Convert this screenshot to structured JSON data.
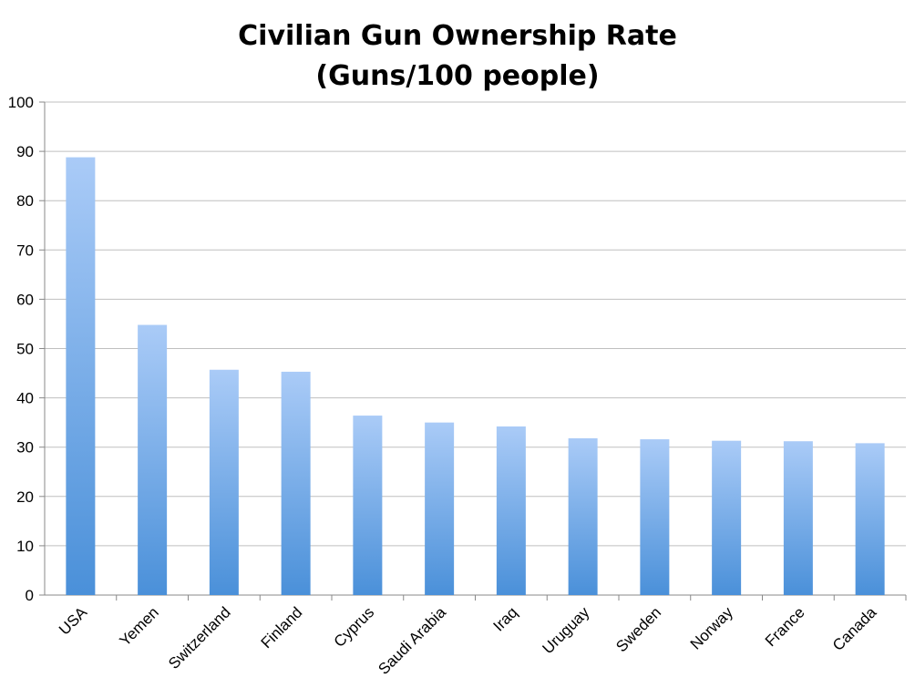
{
  "chart_data": {
    "type": "bar",
    "title": "Civilian Gun Ownership Rate",
    "subtitle": "(Guns/100 people)",
    "xlabel": "",
    "ylabel": "",
    "ylim": [
      0,
      100
    ],
    "yticks": [
      0,
      10,
      20,
      30,
      40,
      50,
      60,
      70,
      80,
      90,
      100
    ],
    "grid": true,
    "legend": "none",
    "categories": [
      "USA",
      "Yemen",
      "Switzerland",
      "Finland",
      "Cyprus",
      "Saudi Arabia",
      "Iraq",
      "Uruguay",
      "Sweden",
      "Norway",
      "France",
      "Canada"
    ],
    "values": [
      88.8,
      54.8,
      45.7,
      45.3,
      36.4,
      35.0,
      34.2,
      31.8,
      31.6,
      31.3,
      31.2,
      30.8
    ],
    "colors": {
      "bar_top": "#aacbf7",
      "bar_bottom": "#4a90d9",
      "grid": "#bfbfbf",
      "axis": "#888888"
    }
  }
}
